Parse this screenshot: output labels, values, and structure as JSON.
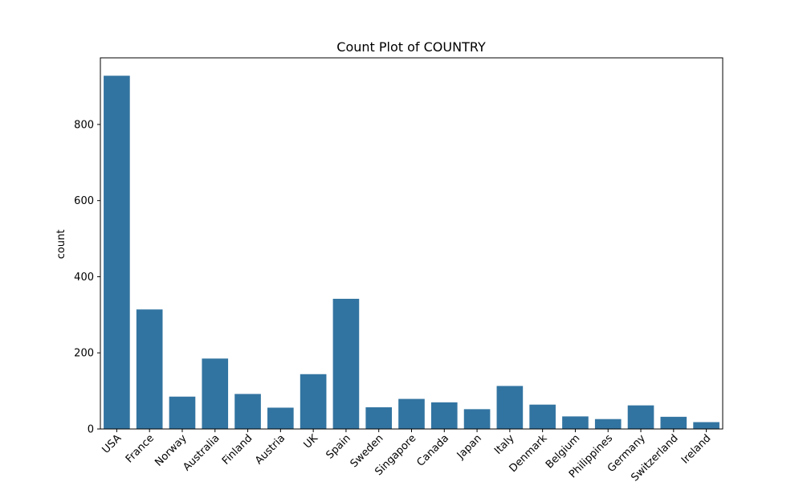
{
  "chart_data": {
    "type": "bar",
    "title": "Count Plot of COUNTRY",
    "xlabel": "",
    "ylabel": "count",
    "categories": [
      "USA",
      "France",
      "Norway",
      "Australia",
      "Finland",
      "Austria",
      "UK",
      "Spain",
      "Sweden",
      "Singapore",
      "Canada",
      "Japan",
      "Italy",
      "Denmark",
      "Belgium",
      "Philippines",
      "Germany",
      "Switzerland",
      "Ireland"
    ],
    "values": [
      928,
      314,
      85,
      185,
      92,
      56,
      144,
      342,
      57,
      79,
      70,
      52,
      113,
      64,
      33,
      26,
      62,
      32,
      18
    ],
    "ylim": [
      0,
      975
    ],
    "yticks": [
      0,
      200,
      400,
      600,
      800
    ],
    "bar_color": "#3274a1",
    "grid": false,
    "legend": "none"
  }
}
